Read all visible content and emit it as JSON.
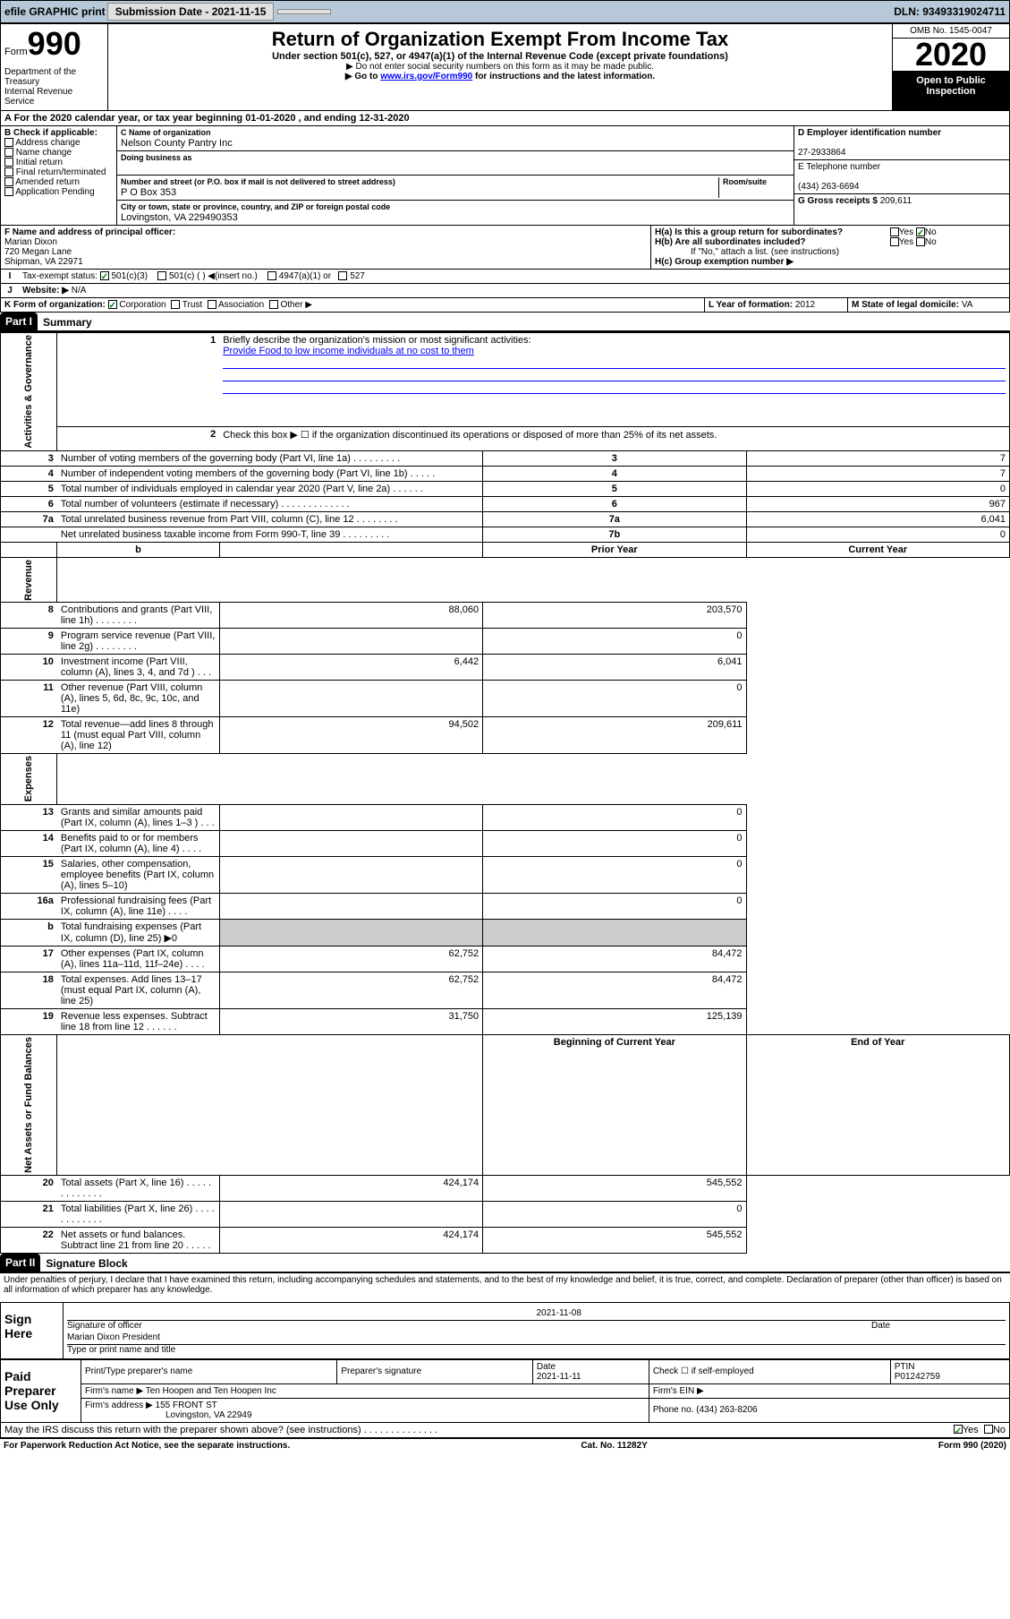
{
  "topbar": {
    "efile": "efile GRAPHIC print",
    "submission": "Submission Date - 2021-11-15",
    "dln": "DLN: 93493319024711"
  },
  "header": {
    "form_label": "Form",
    "form_number": "990",
    "title": "Return of Organization Exempt From Income Tax",
    "subtitle": "Under section 501(c), 527, or 4947(a)(1) of the Internal Revenue Code (except private foundations)",
    "note1": "▶ Do not enter social security numbers on this form as it may be made public.",
    "note2_pre": "▶ Go to ",
    "note2_link": "www.irs.gov/Form990",
    "note2_post": " for instructions and the latest information.",
    "omb": "OMB No. 1545-0047",
    "year": "2020",
    "public": "Open to Public Inspection",
    "dept": "Department of the Treasury\nInternal Revenue Service"
  },
  "period": "A For the 2020 calendar year, or tax year beginning 01-01-2020    , and ending 12-31-2020",
  "section_b": {
    "label": "B Check if applicable:",
    "items": [
      "Address change",
      "Name change",
      "Initial return",
      "Final return/terminated",
      "Amended return",
      "Application Pending"
    ]
  },
  "section_c": {
    "name_label": "C Name of organization",
    "name": "Nelson County Pantry Inc",
    "dba_label": "Doing business as",
    "dba": "",
    "street_label": "Number and street (or P.O. box if mail is not delivered to street address)",
    "room_label": "Room/suite",
    "street": "P O Box 353",
    "city_label": "City or town, state or province, country, and ZIP or foreign postal code",
    "city": "Lovingston, VA  229490353"
  },
  "section_d": {
    "ein_label": "D Employer identification number",
    "ein": "27-2933864",
    "phone_label": "E Telephone number",
    "phone": "(434) 263-6694",
    "receipts_label": "G Gross receipts $ ",
    "receipts": "209,611"
  },
  "section_f": {
    "label": "F  Name and address of principal officer:",
    "name": "Marian Dixon",
    "addr1": "720 Megan Lane",
    "addr2": "Shipman, VA  22971"
  },
  "section_h": {
    "ha": "H(a)  Is this a group return for subordinates?",
    "hb": "H(b)  Are all subordinates included?",
    "hb_note": "If \"No,\" attach a list. (see instructions)",
    "hc": "H(c)  Group exemption number ▶"
  },
  "tax_exempt": {
    "label": "Tax-exempt status:",
    "opt1": "501(c)(3)",
    "opt2": "501(c) (  ) ◀(insert no.)",
    "opt3": "4947(a)(1) or",
    "opt4": "527"
  },
  "website": {
    "label": "Website: ▶",
    "value": "N/A"
  },
  "section_k": {
    "label": "K Form of organization:",
    "corp": "Corporation",
    "trust": "Trust",
    "assoc": "Association",
    "other": "Other ▶"
  },
  "section_l": {
    "label": "L Year of formation:",
    "value": "2012"
  },
  "section_m": {
    "label": "M State of legal domicile:",
    "value": "VA"
  },
  "part1": {
    "num": "Part I",
    "title": "Summary",
    "side_gov": "Activities & Governance",
    "side_rev": "Revenue",
    "side_exp": "Expenses",
    "side_net": "Net Assets or Fund Balances",
    "mission_label": "Briefly describe the organization's mission or most significant activities:",
    "mission": "Provide Food to low income individuals at no cost to them",
    "line2": "Check this box ▶ ☐  if the organization discontinued its operations or disposed of more than 25% of its net assets.",
    "lines_gov": [
      {
        "n": "3",
        "d": "Number of voting members of the governing body (Part VI, line 1a)   .    .    .    .    .    .    .    .    .",
        "box": "3",
        "v": "7"
      },
      {
        "n": "4",
        "d": "Number of independent voting members of the governing body (Part VI, line 1b)   .    .    .    .    .",
        "box": "4",
        "v": "7"
      },
      {
        "n": "5",
        "d": "Total number of individuals employed in calendar year 2020 (Part V, line 2a)   .    .    .    .    .    .",
        "box": "5",
        "v": "0"
      },
      {
        "n": "6",
        "d": "Total number of volunteers (estimate if necessary)   .    .    .    .    .    .    .    .    .    .    .    .    .",
        "box": "6",
        "v": "967"
      },
      {
        "n": "7a",
        "d": "Total unrelated business revenue from Part VIII, column (C), line 12   .    .    .    .    .    .    .    .",
        "box": "7a",
        "v": "6,041"
      },
      {
        "n": "",
        "d": "Net unrelated business taxable income from Form 990-T, line 39   .    .    .    .    .    .    .    .    .",
        "box": "7b",
        "v": "0"
      }
    ],
    "col_prior": "Prior Year",
    "col_current": "Current Year",
    "lines_rev": [
      {
        "n": "8",
        "d": "Contributions and grants (Part VIII, line 1h)   .    .    .    .    .    .    .    .",
        "p": "88,060",
        "c": "203,570"
      },
      {
        "n": "9",
        "d": "Program service revenue (Part VIII, line 2g)   .    .    .    .    .    .    .    .",
        "p": "",
        "c": "0"
      },
      {
        "n": "10",
        "d": "Investment income (Part VIII, column (A), lines 3, 4, and 7d )   .    .    .",
        "p": "6,442",
        "c": "6,041"
      },
      {
        "n": "11",
        "d": "Other revenue (Part VIII, column (A), lines 5, 6d, 8c, 9c, 10c, and 11e)",
        "p": "",
        "c": "0"
      },
      {
        "n": "12",
        "d": "Total revenue—add lines 8 through 11 (must equal Part VIII, column (A), line 12)",
        "p": "94,502",
        "c": "209,611"
      }
    ],
    "lines_exp": [
      {
        "n": "13",
        "d": "Grants and similar amounts paid (Part IX, column (A), lines 1–3 )   .    .    .",
        "p": "",
        "c": "0"
      },
      {
        "n": "14",
        "d": "Benefits paid to or for members (Part IX, column (A), line 4)   .    .    .    .",
        "p": "",
        "c": "0"
      },
      {
        "n": "15",
        "d": "Salaries, other compensation, employee benefits (Part IX, column (A), lines 5–10)",
        "p": "",
        "c": "0"
      },
      {
        "n": "16a",
        "d": "Professional fundraising fees (Part IX, column (A), line 11e)   .    .    .    .",
        "p": "",
        "c": "0"
      },
      {
        "n": "b",
        "d": "Total fundraising expenses (Part IX, column (D), line 25) ▶0",
        "p": "GRAY",
        "c": "GRAY"
      },
      {
        "n": "17",
        "d": "Other expenses (Part IX, column (A), lines 11a–11d, 11f–24e)   .    .    .    .",
        "p": "62,752",
        "c": "84,472"
      },
      {
        "n": "18",
        "d": "Total expenses. Add lines 13–17 (must equal Part IX, column (A), line 25)",
        "p": "62,752",
        "c": "84,472"
      },
      {
        "n": "19",
        "d": "Revenue less expenses. Subtract line 18 from line 12   .    .    .    .    .    .",
        "p": "31,750",
        "c": "125,139"
      }
    ],
    "col_begin": "Beginning of Current Year",
    "col_end": "End of Year",
    "lines_net": [
      {
        "n": "20",
        "d": "Total assets (Part X, line 16)   .    .    .    .    .    .    .    .    .    .    .    .    .",
        "p": "424,174",
        "c": "545,552"
      },
      {
        "n": "21",
        "d": "Total liabilities (Part X, line 26)   .    .    .    .    .    .    .    .    .    .    .    .",
        "p": "",
        "c": "0"
      },
      {
        "n": "22",
        "d": "Net assets or fund balances. Subtract line 21 from line 20   .    .    .    .    .",
        "p": "424,174",
        "c": "545,552"
      }
    ]
  },
  "part2": {
    "num": "Part II",
    "title": "Signature Block",
    "perjury": "Under penalties of perjury, I declare that I have examined this return, including accompanying schedules and statements, and to the best of my knowledge and belief, it is true, correct, and complete. Declaration of preparer (other than officer) is based on all information of which preparer has any knowledge.",
    "sign_here": "Sign Here",
    "sig_officer": "Signature of officer",
    "sig_date": "2021-11-08",
    "sig_date_lbl": "Date",
    "officer_name": "Marian Dixon  President",
    "officer_name_lbl": "Type or print name and title",
    "paid_prep": "Paid Preparer Use Only",
    "prep_name_lbl": "Print/Type preparer's name",
    "prep_sig_lbl": "Preparer's signature",
    "prep_date_lbl": "Date",
    "prep_date": "2021-11-11",
    "check_self": "Check ☐ if self-employed",
    "ptin_lbl": "PTIN",
    "ptin": "P01242759",
    "firm_name_lbl": "Firm's name      ▶",
    "firm_name": "Ten Hoopen and Ten Hoopen Inc",
    "firm_ein_lbl": "Firm's EIN ▶",
    "firm_addr_lbl": "Firm's address ▶",
    "firm_addr": "155 FRONT ST",
    "firm_city": "Lovingston, VA  22949",
    "firm_phone_lbl": "Phone no.",
    "firm_phone": "(434) 263-8206",
    "discuss": "May the IRS discuss this return with the preparer shown above? (see instructions)   .    .    .    .    .    .    .    .    .    .    .    .    .    .",
    "yes": "Yes",
    "no": "No"
  },
  "footer": {
    "paperwork": "For Paperwork Reduction Act Notice, see the separate instructions.",
    "cat": "Cat. No. 11282Y",
    "form": "Form 990 (2020)"
  }
}
